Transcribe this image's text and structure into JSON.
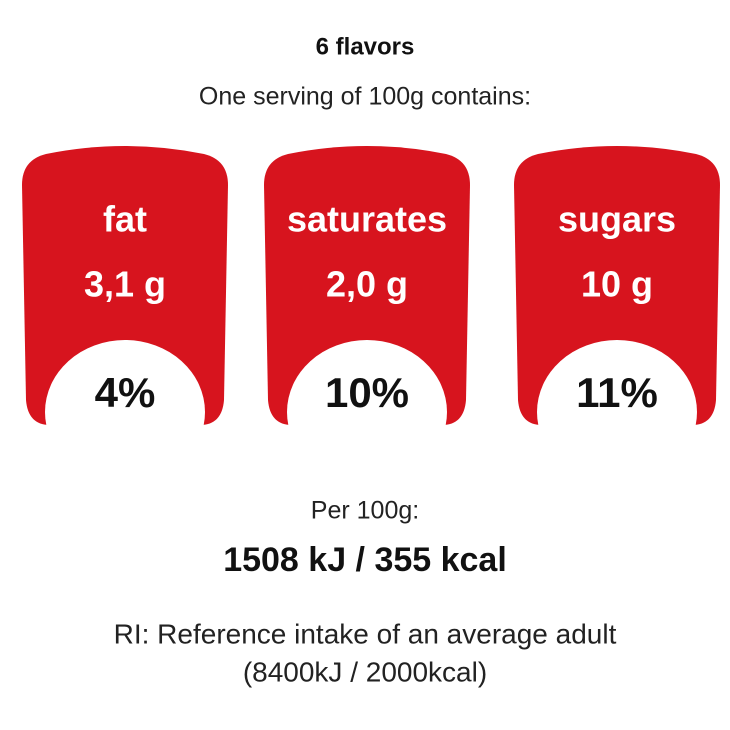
{
  "header": {
    "title": "6 flavors",
    "subtitle": "One serving of 100g contains:"
  },
  "badges": [
    {
      "name": "fat",
      "amount": "3,1 g",
      "percent": "4%"
    },
    {
      "name": "saturates",
      "amount": "2,0 g",
      "percent": "10%"
    },
    {
      "name": "sugars",
      "amount": "10 g",
      "percent": "11%"
    }
  ],
  "energy": {
    "label": "Per 100g:",
    "value": "1508 kJ / 355 kcal"
  },
  "footer": {
    "note": "RI: Reference intake of an average adult",
    "reference": "(8400kJ / 2000kcal)"
  }
}
